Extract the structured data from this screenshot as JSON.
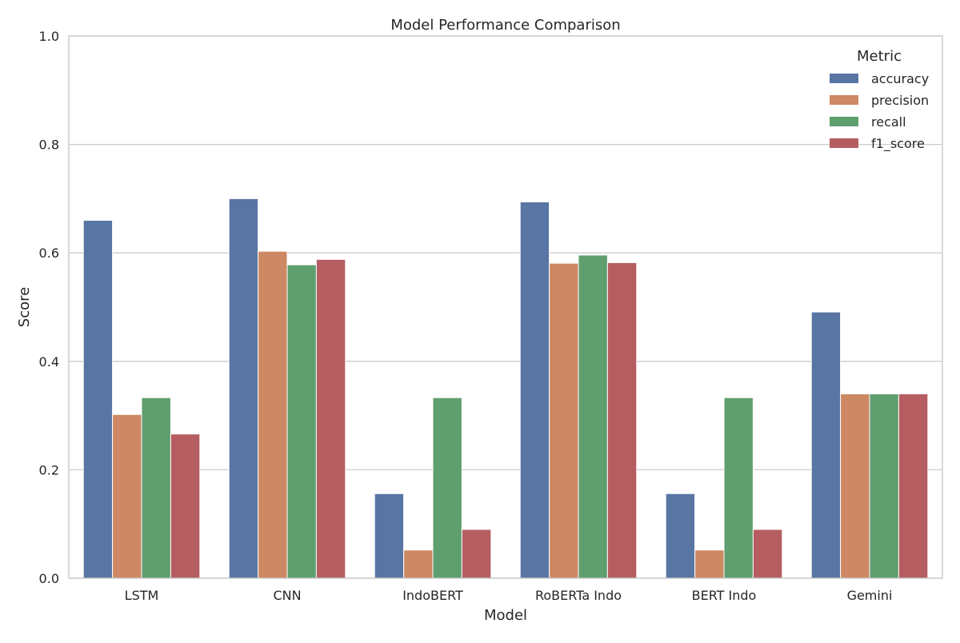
{
  "chart_data": {
    "type": "bar",
    "title": "Model Performance Comparison",
    "xlabel": "Model",
    "ylabel": "Score",
    "ylim": [
      0,
      1.0
    ],
    "yticks": [
      "0.0",
      "0.2",
      "0.4",
      "0.6",
      "0.8",
      "1.0"
    ],
    "grid": "horizontal",
    "legend": {
      "title": "Metric",
      "placement": "top-right"
    },
    "categories": [
      "LSTM",
      "CNN",
      "IndoBERT",
      "RoBERTa Indo",
      "BERT Indo",
      "Gemini"
    ],
    "series": [
      {
        "name": "accuracy",
        "color": "#5975a4",
        "values": [
          0.66,
          0.7,
          0.156,
          0.694,
          0.156,
          0.491
        ]
      },
      {
        "name": "precision",
        "color": "#cc8963",
        "values": [
          0.302,
          0.603,
          0.052,
          0.581,
          0.052,
          0.34
        ]
      },
      {
        "name": "recall",
        "color": "#5f9e6e",
        "values": [
          0.333,
          0.578,
          0.333,
          0.596,
          0.333,
          0.34
        ]
      },
      {
        "name": "f1_score",
        "color": "#b55d60",
        "values": [
          0.266,
          0.588,
          0.09,
          0.582,
          0.09,
          0.34
        ]
      }
    ]
  }
}
